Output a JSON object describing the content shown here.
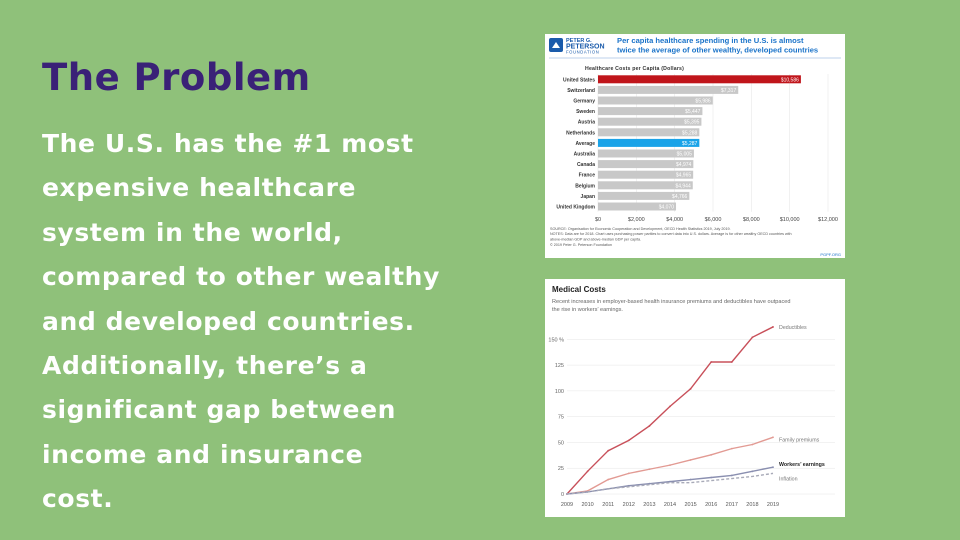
{
  "slide": {
    "title": "The Problem",
    "body": "The U.S. has the #1 most expensive healthcare system in the world, compared to other wealthy and developed countries. Additionally, there’s a significant gap between income and insurance cost."
  },
  "colors": {
    "background": "#8fc17a",
    "title": "#3a2177",
    "us_bar": "#c0151b",
    "average_bar": "#1aa3e8",
    "other_bar": "#c8c8c8",
    "peterson_blue": "#1a5bab"
  },
  "chart_data": [
    {
      "type": "bar",
      "orientation": "horizontal",
      "logo": {
        "line1": "PETER G.",
        "line2": "PETERSON",
        "line3": "FOUNDATION"
      },
      "headline": "Per capita healthcare spending in the U.S. is almost twice the average of other wealthy, developed countries",
      "title": "Healthcare Costs per Capita (Dollars)",
      "categories": [
        "United States",
        "Switzerland",
        "Germany",
        "Sweden",
        "Austria",
        "Netherlands",
        "Average",
        "Australia",
        "Canada",
        "France",
        "Belgium",
        "Japan",
        "United Kingdom"
      ],
      "values": [
        10586,
        7317,
        5986,
        5447,
        5395,
        5288,
        5287,
        5005,
        4974,
        4965,
        4944,
        4766,
        4070
      ],
      "value_labels": [
        "$10,586",
        "$7,317",
        "$5,986",
        "$5,447",
        "$5,395",
        "$5,288",
        "$5,287",
        "$5,005",
        "$4,974",
        "$4,965",
        "$4,944",
        "$4,766",
        "$4,070"
      ],
      "xticks": [
        "$0",
        "$2,000",
        "$4,000",
        "$6,000",
        "$8,000",
        "$10,000",
        "$12,000"
      ],
      "xlim": [
        0,
        12000
      ],
      "source_lines": [
        "SOURCE: Organisation for Economic Cooperation and Development, OECD Health Statistics 2019, July 2019.",
        "NOTES: Data are for 2018. Chart uses purchasing power parities to convert data into U.S. dollars. Average is for other wealthy OECD countries with",
        "above-median GDP and above-median GDP per capita.",
        "© 2019 Peter G. Peterson Foundation"
      ],
      "footer_tag": "PGPF.ORG"
    },
    {
      "type": "line",
      "title": "Medical Costs",
      "subtitle_lines": [
        "Recent increases in employer-based health insurance premiums and deductibles have outpaced",
        "the rise in workers’ earnings."
      ],
      "x": [
        2009,
        2010,
        2011,
        2012,
        2013,
        2014,
        2015,
        2016,
        2017,
        2018,
        2019
      ],
      "xticks": [
        "2009",
        "2010",
        "2011",
        "2012",
        "2013",
        "2014",
        "2015",
        "2016",
        "2017",
        "2018",
        "2019"
      ],
      "yticks": [
        "150 %",
        "125",
        "100",
        "75",
        "50",
        "25",
        "0"
      ],
      "ylim": [
        0,
        160
      ],
      "series": [
        {
          "name": "Deductibles",
          "color": "#c8505a",
          "dashed": false,
          "values": [
            0,
            22,
            42,
            52,
            66,
            85,
            102,
            128,
            128,
            152,
            162
          ]
        },
        {
          "name": "Family premiums",
          "color": "#e29a93",
          "dashed": false,
          "values": [
            0,
            3,
            14,
            20,
            24,
            28,
            33,
            38,
            44,
            48,
            55
          ]
        },
        {
          "name": "Workers’ earnings",
          "color": "#8a8fb0",
          "dashed": false,
          "values": [
            0,
            2,
            5,
            8,
            10,
            12,
            14,
            16,
            18,
            22,
            26
          ]
        },
        {
          "name": "Inflation",
          "color": "#a8aab8",
          "dashed": true,
          "values": [
            0,
            2,
            5,
            7,
            9,
            11,
            11,
            13,
            15,
            17,
            20
          ]
        }
      ]
    }
  ]
}
